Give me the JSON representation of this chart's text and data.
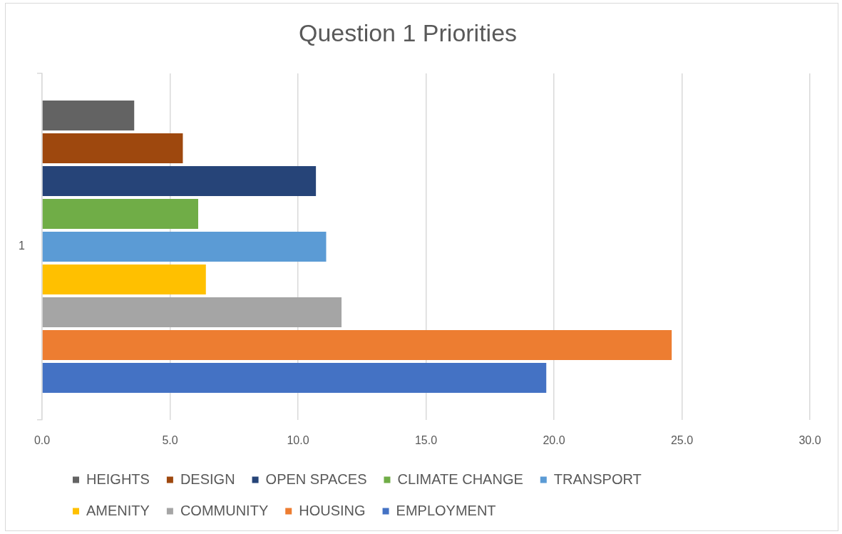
{
  "chart_data": {
    "type": "bar",
    "orientation": "horizontal",
    "title": "Question 1 Priorities",
    "categories": [
      "1"
    ],
    "series": [
      {
        "name": "HEIGHTS",
        "color": "#636363",
        "values": [
          3.6
        ]
      },
      {
        "name": "DESIGN",
        "color": "#9e480e",
        "values": [
          5.5
        ]
      },
      {
        "name": "OPEN SPACES",
        "color": "#264478",
        "values": [
          10.7
        ]
      },
      {
        "name": "CLIMATE CHANGE",
        "color": "#70ad47",
        "values": [
          6.1
        ]
      },
      {
        "name": "TRANSPORT",
        "color": "#5b9bd5",
        "values": [
          11.1
        ]
      },
      {
        "name": "AMENITY",
        "color": "#ffc000",
        "values": [
          6.4
        ]
      },
      {
        "name": "COMMUNITY",
        "color": "#a5a5a5",
        "values": [
          11.7
        ]
      },
      {
        "name": "HOUSING",
        "color": "#ed7d31",
        "values": [
          24.6
        ]
      },
      {
        "name": "EMPLOYMENT",
        "color": "#4472c4",
        "values": [
          19.7
        ]
      }
    ],
    "xlim": [
      0,
      30
    ],
    "xticks": [
      {
        "value": 0,
        "label": "0.0"
      },
      {
        "value": 5,
        "label": "5.0"
      },
      {
        "value": 10,
        "label": "10.0"
      },
      {
        "value": 15,
        "label": "15.0"
      },
      {
        "value": 20,
        "label": "20.0"
      },
      {
        "value": 25,
        "label": "25.0"
      },
      {
        "value": 30,
        "label": "30.0"
      }
    ],
    "grid": "x",
    "legend": "bottom"
  }
}
